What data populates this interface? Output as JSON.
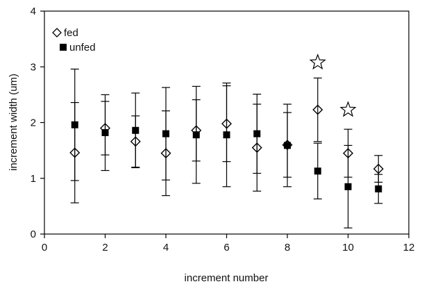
{
  "chart_data": {
    "type": "scatter",
    "xlabel": "increment number",
    "ylabel": "increment width (um)",
    "xlim": [
      0,
      12
    ],
    "ylim": [
      0,
      4
    ],
    "xticks": [
      0,
      2,
      4,
      6,
      8,
      10,
      12
    ],
    "yticks": [
      0,
      1,
      2,
      3,
      4
    ],
    "grid": false,
    "legend_position": "top-left",
    "series": [
      {
        "name": "fed",
        "marker": "open-diamond",
        "x": [
          1,
          2,
          3,
          4,
          5,
          6,
          7,
          8,
          9,
          10,
          11
        ],
        "y": [
          1.46,
          1.9,
          1.66,
          1.45,
          1.86,
          1.98,
          1.55,
          1.6,
          2.23,
          1.45,
          1.17
        ],
        "error": [
          0.9,
          0.48,
          0.46,
          0.76,
          0.55,
          0.68,
          0.78,
          0.58,
          0.57,
          0.43,
          0.24
        ]
      },
      {
        "name": "unfed",
        "marker": "filled-square",
        "x": [
          1,
          2,
          3,
          4,
          5,
          6,
          7,
          8,
          9,
          10,
          11
        ],
        "y": [
          1.96,
          1.82,
          1.86,
          1.8,
          1.78,
          1.78,
          1.8,
          1.59,
          1.13,
          0.85,
          0.81
        ],
        "error": [
          1.0,
          0.68,
          0.67,
          0.83,
          0.87,
          0.93,
          0.71,
          0.74,
          0.5,
          0.74,
          0.26
        ]
      }
    ],
    "annotations": [
      {
        "marker": "star",
        "x": 9,
        "y": 3.08
      },
      {
        "marker": "star",
        "x": 10,
        "y": 2.23
      }
    ]
  }
}
